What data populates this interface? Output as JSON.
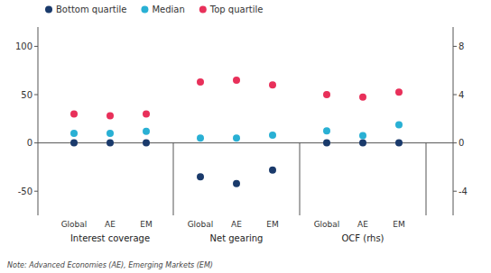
{
  "chart_data": {
    "type": "scatter",
    "categories": [
      "Global",
      "AE",
      "EM",
      "Global",
      "AE",
      "EM",
      "Global",
      "AE",
      "EM"
    ],
    "section_labels": [
      "Interest coverage",
      "Net gearing",
      "OCF (rhs)"
    ],
    "series": [
      {
        "name": "Bottom quartile",
        "color": "#1a3a6b",
        "values": [
          0,
          0,
          0,
          -35,
          -42,
          -28,
          null,
          null,
          null
        ]
      },
      {
        "name": "Median",
        "color": "#29b0d4",
        "values": [
          10,
          10,
          12,
          5,
          5,
          8,
          null,
          null,
          null
        ]
      },
      {
        "name": "Top quartile",
        "color": "#e8305a",
        "values": [
          30,
          28,
          30,
          63,
          65,
          60,
          null,
          null,
          null
        ]
      },
      {
        "name": "Bottom quartile",
        "color": "#1a3a6b",
        "axis": "y2",
        "values": [
          null,
          null,
          null,
          null,
          null,
          null,
          0,
          0,
          0
        ]
      },
      {
        "name": "Median",
        "color": "#29b0d4",
        "axis": "y2",
        "values": [
          null,
          null,
          null,
          null,
          null,
          null,
          1.0,
          0.6,
          1.5
        ]
      },
      {
        "name": "Top quartile",
        "color": "#e8305a",
        "axis": "y2",
        "values": [
          null,
          null,
          null,
          null,
          null,
          null,
          4.0,
          3.8,
          4.2
        ]
      }
    ],
    "ylim": [
      -75,
      120
    ],
    "yticks": [
      -50,
      0,
      50,
      100
    ],
    "y2lim": [
      -6,
      9.6
    ],
    "y2ticks": [
      -4,
      0,
      4,
      8
    ],
    "grid": false,
    "legend": "upper left",
    "note": "Note: Advanced Economies (AE), Emerging Markets (EM)"
  }
}
